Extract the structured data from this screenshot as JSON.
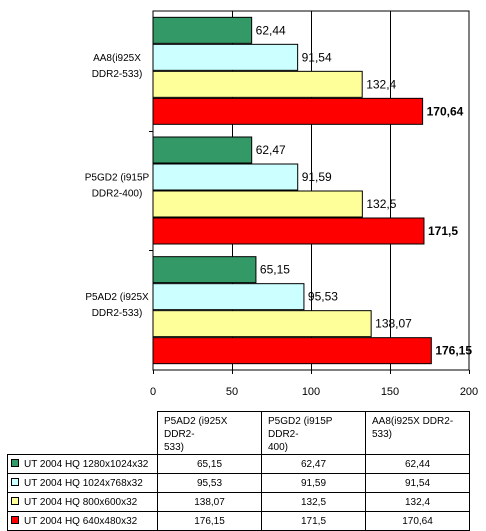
{
  "chart_data": {
    "type": "bar",
    "orientation": "horizontal",
    "categories": [
      "AA8(i925X DDR2-533)",
      "P5GD2 (i915P DDR2-400)",
      "P5AD2 (i925X DDR2-533)"
    ],
    "category_lines": [
      [
        "AA8(i925X",
        "DDR2-533)"
      ],
      [
        "P5GD2 (i915P",
        "DDR2-400)"
      ],
      [
        "P5AD2 (i925X",
        "DDR2-533)"
      ]
    ],
    "series": [
      {
        "name": "UT 2004 HQ 1280x1024x32",
        "color": "#339966",
        "values": [
          62.44,
          62.47,
          65.15
        ],
        "labels": [
          "62,44",
          "62,47",
          "65,15"
        ]
      },
      {
        "name": "UT 2004 HQ 1024x768x32",
        "color": "#ccffff",
        "values": [
          91.54,
          91.59,
          95.53
        ],
        "labels": [
          "91,54",
          "91,59",
          "95,53"
        ]
      },
      {
        "name": "UT 2004 HQ 800x600x32",
        "color": "#ffff99",
        "values": [
          132.4,
          132.5,
          138.07
        ],
        "labels": [
          "132,4",
          "132,5",
          "138,07"
        ]
      },
      {
        "name": "UT 2004 HQ 640x480x32",
        "color": "#ff0000",
        "values": [
          170.64,
          171.5,
          176.15
        ],
        "labels": [
          "170,64",
          "171,5",
          "176,15"
        ],
        "bold_labels": true
      }
    ],
    "xlim": [
      0,
      200
    ],
    "xticks": [
      0,
      50,
      100,
      150,
      200
    ],
    "xgrid": true,
    "legend": "table-below"
  },
  "table": {
    "columns": [
      "P5AD2 (i925X DDR2-533)",
      "P5GD2 (i915P DDR2-400)",
      "AA8(i925X DDR2-533)"
    ],
    "column_lines": [
      [
        "P5AD2 (i925X DDR2-",
        "533)"
      ],
      [
        "P5GD2 (i915P DDR2-",
        "400)"
      ],
      [
        "AA8(i925X DDR2-",
        "533)"
      ]
    ],
    "rows": [
      {
        "label": "UT 2004 HQ 1280x1024x32",
        "color": "#339966",
        "values": [
          "65,15",
          "62,47",
          "62,44"
        ]
      },
      {
        "label": "UT 2004 HQ 1024x768x32",
        "color": "#ccffff",
        "values": [
          "95,53",
          "91,59",
          "91,54"
        ]
      },
      {
        "label": "UT 2004 HQ 800x600x32",
        "color": "#ffff99",
        "values": [
          "138,07",
          "132,5",
          "132,4"
        ]
      },
      {
        "label": "UT 2004 HQ 640x480x32",
        "color": "#ff0000",
        "values": [
          "176,15",
          "171,5",
          "170,64"
        ]
      }
    ]
  }
}
